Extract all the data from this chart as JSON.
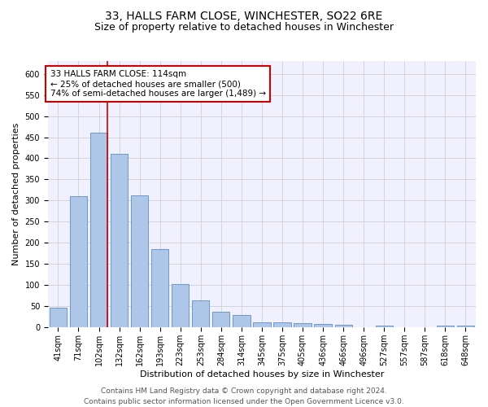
{
  "title": "33, HALLS FARM CLOSE, WINCHESTER, SO22 6RE",
  "subtitle": "Size of property relative to detached houses in Winchester",
  "xlabel": "Distribution of detached houses by size in Winchester",
  "ylabel": "Number of detached properties",
  "categories": [
    "41sqm",
    "71sqm",
    "102sqm",
    "132sqm",
    "162sqm",
    "193sqm",
    "223sqm",
    "253sqm",
    "284sqm",
    "314sqm",
    "345sqm",
    "375sqm",
    "405sqm",
    "436sqm",
    "466sqm",
    "496sqm",
    "527sqm",
    "557sqm",
    "587sqm",
    "618sqm",
    "648sqm"
  ],
  "values": [
    46,
    311,
    460,
    411,
    313,
    185,
    103,
    65,
    38,
    30,
    13,
    12,
    10,
    8,
    6,
    0,
    5,
    0,
    0,
    5,
    5
  ],
  "bar_color": "#aec6e8",
  "bar_edge_color": "#5b8fc9",
  "grid_color": "#d0d0d0",
  "background_color": "#f0f0ff",
  "annotation_text": "33 HALLS FARM CLOSE: 114sqm\n← 25% of detached houses are smaller (500)\n74% of semi-detached houses are larger (1,489) →",
  "annotation_box_color": "#ffffff",
  "annotation_border_color": "#cc0000",
  "vline_color": "#cc0000",
  "footer_text": "Contains HM Land Registry data © Crown copyright and database right 2024.\nContains public sector information licensed under the Open Government Licence v3.0.",
  "ylim": [
    0,
    630
  ],
  "yticks": [
    0,
    50,
    100,
    150,
    200,
    250,
    300,
    350,
    400,
    450,
    500,
    550,
    600
  ],
  "title_fontsize": 10,
  "subtitle_fontsize": 9,
  "axis_label_fontsize": 8,
  "tick_fontsize": 7,
  "annotation_fontsize": 7.5,
  "footer_fontsize": 6.5
}
